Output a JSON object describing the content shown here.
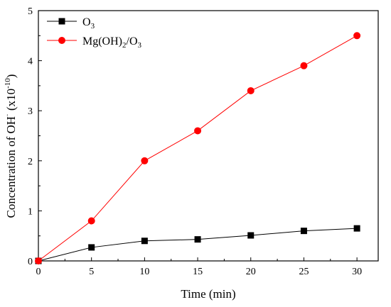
{
  "chart_data": {
    "type": "line",
    "x": [
      0,
      5,
      10,
      15,
      20,
      25,
      30
    ],
    "series": [
      {
        "name": "O3",
        "color": "#000000",
        "marker": "square",
        "values": [
          0,
          0.27,
          0.4,
          0.43,
          0.51,
          0.6,
          0.65
        ]
      },
      {
        "name": "Mg(OH)2/O3",
        "color": "#ff0000",
        "marker": "circle",
        "values": [
          0,
          0.8,
          2.0,
          2.6,
          3.4,
          3.9,
          4.5
        ]
      }
    ],
    "xlabel": "Time (min)",
    "ylabel": "Concentration of OH· (x10^-10)",
    "xlim": [
      0,
      32
    ],
    "ylim": [
      0,
      5
    ],
    "xticks": [
      "0",
      "5",
      "10",
      "15",
      "20",
      "25",
      "30"
    ],
    "yticks": [
      "0",
      "1",
      "2",
      "3",
      "4",
      "5"
    ],
    "grid": false,
    "legend_position": "top-left"
  }
}
